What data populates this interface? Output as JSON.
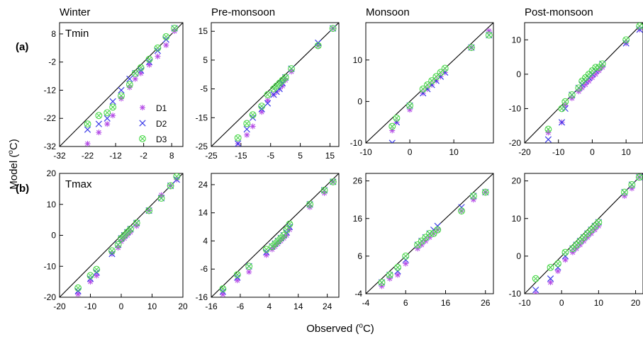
{
  "figure": {
    "ylabel_main": "Model (",
    "ylabel_unit": "C)",
    "xlabel_main": "Observed (",
    "xlabel_unit": "C)",
    "degree": "o"
  },
  "colors": {
    "D1": "#b44be6",
    "D2": "#3a3ae8",
    "D3": "#4cd84c",
    "line": "#000000"
  },
  "legend": {
    "entries": [
      {
        "label": "D1",
        "series": "D1",
        "symbol": "asterisk"
      },
      {
        "label": "D2",
        "series": "D2",
        "symbol": "cross"
      },
      {
        "label": "D3",
        "series": "D3",
        "symbol": "circle-x"
      }
    ]
  },
  "row_labels": [
    "(a)",
    "(b)"
  ],
  "chart_data": [
    {
      "type": "scatter",
      "title": "Winter",
      "label": "Tmin",
      "xlim": [
        -32,
        12
      ],
      "ylim": [
        -32,
        12
      ],
      "xticks": [
        -32,
        -22,
        -12,
        -2,
        8
      ],
      "yticks": [
        -32,
        -22,
        -12,
        -2,
        8
      ],
      "reference": "1:1 line",
      "series": [
        {
          "name": "D1",
          "x": [
            -22,
            -18,
            -15,
            -13,
            -10,
            -7,
            -5,
            -3,
            0,
            3,
            6,
            9
          ],
          "y": [
            -31,
            -27,
            -24,
            -21,
            -15,
            -11,
            -8,
            -6,
            -3,
            0,
            4,
            9
          ]
        },
        {
          "name": "D2",
          "x": [
            -22,
            -18,
            -15,
            -13,
            -10,
            -7,
            -5,
            -3,
            0,
            3,
            6,
            9
          ],
          "y": [
            -26,
            -24,
            -22,
            -16,
            -12,
            -8,
            -6,
            -5,
            -2,
            2,
            6,
            10
          ]
        },
        {
          "name": "D3",
          "x": [
            -22,
            -18,
            -15,
            -13,
            -10,
            -7,
            -5,
            -3,
            0,
            3,
            6,
            9
          ],
          "y": [
            -24,
            -21,
            -20,
            -18,
            -14,
            -10,
            -6,
            -4,
            -1,
            3,
            7,
            10
          ]
        }
      ]
    },
    {
      "type": "scatter",
      "title": "Pre-monsoon",
      "xlim": [
        -25,
        18
      ],
      "ylim": [
        -25,
        18
      ],
      "xticks": [
        -25,
        -15,
        -5,
        5,
        15
      ],
      "yticks": [
        -25,
        -15,
        -5,
        5,
        15
      ],
      "reference": "1:1 line",
      "series": [
        {
          "name": "D1",
          "x": [
            -16,
            -13,
            -11,
            -8,
            -6,
            -4,
            -3,
            -2,
            -1,
            0,
            2,
            11,
            16
          ],
          "y": [
            -24,
            -21,
            -18,
            -13,
            -9,
            -7,
            -6,
            -5,
            -4,
            -2,
            1,
            10,
            16
          ]
        },
        {
          "name": "D2",
          "x": [
            -16,
            -13,
            -11,
            -8,
            -6,
            -4,
            -3,
            -2,
            -1,
            0,
            2,
            11,
            16
          ],
          "y": [
            -24,
            -19,
            -15,
            -12,
            -10,
            -7,
            -6,
            -5,
            -3,
            -1,
            2,
            11,
            16
          ]
        },
        {
          "name": "D3",
          "x": [
            -16,
            -13,
            -11,
            -8,
            -6,
            -4,
            -3,
            -2,
            -1,
            0,
            2,
            11,
            16
          ],
          "y": [
            -22,
            -17,
            -14,
            -11,
            -7,
            -5,
            -4,
            -3,
            -2,
            -1,
            2,
            10,
            16
          ]
        }
      ]
    },
    {
      "type": "scatter",
      "title": "Monsoon",
      "xlim": [
        -10,
        19
      ],
      "ylim": [
        -10,
        19
      ],
      "xticks": [
        -10,
        0,
        10
      ],
      "yticks": [
        -10,
        0,
        10
      ],
      "reference": "1:1 line",
      "series": [
        {
          "name": "D1",
          "x": [
            -4,
            -3,
            0,
            3,
            4,
            5,
            6,
            7,
            8,
            14,
            18
          ],
          "y": [
            -7,
            -5,
            -2,
            2,
            3,
            4,
            5,
            6,
            7,
            13,
            17
          ]
        },
        {
          "name": "D2",
          "x": [
            -4,
            -3,
            0,
            3,
            4,
            5,
            6,
            7,
            8,
            14,
            18
          ],
          "y": [
            -10,
            -5,
            -1,
            2,
            3,
            4,
            5,
            6,
            7,
            13,
            16
          ]
        },
        {
          "name": "D3",
          "x": [
            -4,
            -3,
            0,
            3,
            4,
            5,
            6,
            7,
            8,
            14,
            18
          ],
          "y": [
            -6,
            -4,
            -1,
            3,
            4,
            5,
            6,
            7,
            8,
            13,
            16
          ]
        }
      ]
    },
    {
      "type": "scatter",
      "title": "Post-monsoon",
      "xlim": [
        -20,
        15
      ],
      "ylim": [
        -20,
        15
      ],
      "xticks": [
        -20,
        -10,
        0,
        10
      ],
      "yticks": [
        -20,
        -10,
        0,
        10
      ],
      "reference": "1:1 line",
      "series": [
        {
          "name": "D1",
          "x": [
            -13,
            -9,
            -8,
            -6,
            -4,
            -3,
            -2,
            -1,
            0,
            1,
            2,
            3,
            10,
            14
          ],
          "y": [
            -17,
            -14,
            -9,
            -7,
            -5,
            -4,
            -3,
            -2,
            -1,
            0,
            1,
            2,
            9,
            13
          ]
        },
        {
          "name": "D2",
          "x": [
            -13,
            -9,
            -8,
            -6,
            -4,
            -3,
            -2,
            -1,
            0,
            1,
            2,
            3,
            10,
            14
          ],
          "y": [
            -19,
            -14,
            -10,
            -6,
            -4,
            -3,
            -2,
            -1,
            0,
            1,
            2,
            3,
            9,
            13
          ]
        },
        {
          "name": "D3",
          "x": [
            -13,
            -9,
            -8,
            -6,
            -4,
            -3,
            -2,
            -1,
            0,
            1,
            2,
            3,
            10,
            14
          ],
          "y": [
            -16,
            -10,
            -8,
            -6,
            -4,
            -2,
            -1,
            0,
            1,
            2,
            2,
            3,
            10,
            14
          ]
        }
      ]
    },
    {
      "type": "scatter",
      "label": "Tmax",
      "xlim": [
        -20,
        20
      ],
      "ylim": [
        -20,
        20
      ],
      "xticks": [
        -20,
        -10,
        0,
        10,
        20
      ],
      "yticks": [
        -20,
        -10,
        0,
        10,
        20
      ],
      "reference": "1:1 line",
      "series": [
        {
          "name": "D1",
          "x": [
            -14,
            -10,
            -8,
            -3,
            -1,
            0,
            1,
            2,
            3,
            5,
            9,
            13,
            16,
            18
          ],
          "y": [
            -19,
            -15,
            -13,
            -6,
            -4,
            -2,
            -1,
            0,
            1,
            3,
            8,
            13,
            16,
            18
          ]
        },
        {
          "name": "D2",
          "x": [
            -14,
            -10,
            -8,
            -3,
            -1,
            0,
            1,
            2,
            3,
            5,
            9,
            13,
            16,
            18
          ],
          "y": [
            -18,
            -14,
            -12,
            -6,
            -3,
            -1,
            0,
            1,
            2,
            4,
            8,
            12,
            16,
            18
          ]
        },
        {
          "name": "D3",
          "x": [
            -14,
            -10,
            -8,
            -3,
            -1,
            0,
            1,
            2,
            3,
            5,
            9,
            13,
            16,
            18
          ],
          "y": [
            -17,
            -13,
            -11,
            -5,
            -3,
            -1,
            0,
            1,
            2,
            4,
            8,
            12,
            16,
            19
          ]
        }
      ]
    },
    {
      "type": "scatter",
      "xlim": [
        -16,
        28
      ],
      "ylim": [
        -16,
        28
      ],
      "xticks": [
        -16,
        -6,
        4,
        14,
        24
      ],
      "yticks": [
        -16,
        -6,
        4,
        14,
        24
      ],
      "reference": "1:1 line",
      "series": [
        {
          "name": "D1",
          "x": [
            -12,
            -7,
            -3,
            3,
            5,
            6,
            7,
            8,
            9,
            10,
            11,
            18,
            23,
            26
          ],
          "y": [
            -15,
            -10,
            -7,
            -1,
            1,
            2,
            3,
            4,
            5,
            6,
            8,
            16,
            21,
            25
          ]
        },
        {
          "name": "D2",
          "x": [
            -12,
            -7,
            -3,
            3,
            5,
            6,
            7,
            8,
            9,
            10,
            11,
            18,
            23,
            26
          ],
          "y": [
            -14,
            -9,
            -5,
            0,
            2,
            3,
            4,
            5,
            6,
            7,
            9,
            17,
            22,
            25
          ]
        },
        {
          "name": "D3",
          "x": [
            -12,
            -7,
            -3,
            3,
            5,
            6,
            7,
            8,
            9,
            10,
            11,
            18,
            23,
            26
          ],
          "y": [
            -13,
            -8,
            -5,
            1,
            2,
            3,
            4,
            5,
            6,
            8,
            10,
            17,
            22,
            25
          ]
        }
      ]
    },
    {
      "type": "scatter",
      "xlim": [
        -4,
        28
      ],
      "ylim": [
        -4,
        28
      ],
      "xticks": [
        -4,
        6,
        16,
        26
      ],
      "yticks": [
        -4,
        6,
        16,
        26
      ],
      "reference": "1:1 line",
      "series": [
        {
          "name": "D1",
          "x": [
            0,
            2,
            4,
            6,
            9,
            10,
            11,
            12,
            13,
            14,
            20,
            23,
            26
          ],
          "y": [
            -2,
            0,
            1,
            4,
            8,
            9,
            10,
            11,
            12,
            13,
            18,
            21,
            23
          ]
        },
        {
          "name": "D2",
          "x": [
            0,
            2,
            4,
            6,
            9,
            10,
            11,
            12,
            13,
            14,
            20,
            23,
            26
          ],
          "y": [
            -1,
            1,
            2,
            5,
            9,
            10,
            11,
            12,
            13,
            14,
            19,
            22,
            23
          ]
        },
        {
          "name": "D3",
          "x": [
            0,
            2,
            4,
            6,
            9,
            10,
            11,
            12,
            13,
            14,
            20,
            23,
            26
          ],
          "y": [
            -1,
            1,
            3,
            6,
            9,
            10,
            11,
            12,
            12,
            13,
            18,
            22,
            23
          ]
        }
      ]
    },
    {
      "type": "scatter",
      "xlim": [
        -10,
        22
      ],
      "ylim": [
        -10,
        22
      ],
      "xticks": [
        -10,
        0,
        10,
        20
      ],
      "yticks": [
        -10,
        0,
        10,
        20
      ],
      "reference": "1:1 line",
      "series": [
        {
          "name": "D1",
          "x": [
            -7,
            -3,
            -1,
            1,
            3,
            4,
            5,
            6,
            7,
            8,
            9,
            10,
            17,
            19,
            21
          ],
          "y": [
            -10,
            -7,
            -4,
            -1,
            1,
            2,
            3,
            4,
            5,
            6,
            7,
            8,
            16,
            18,
            21
          ]
        },
        {
          "name": "D2",
          "x": [
            -7,
            -3,
            -1,
            1,
            3,
            4,
            5,
            6,
            7,
            8,
            9,
            10,
            17,
            19,
            21
          ],
          "y": [
            -9,
            -6,
            -3,
            0,
            2,
            3,
            4,
            5,
            6,
            7,
            8,
            9,
            17,
            19,
            21
          ]
        },
        {
          "name": "D3",
          "x": [
            -7,
            -3,
            -1,
            1,
            3,
            4,
            5,
            6,
            7,
            8,
            9,
            10,
            17,
            19,
            21
          ],
          "y": [
            -6,
            -3,
            -2,
            1,
            2,
            3,
            4,
            5,
            6,
            7,
            8,
            9,
            17,
            19,
            21
          ]
        }
      ]
    }
  ]
}
